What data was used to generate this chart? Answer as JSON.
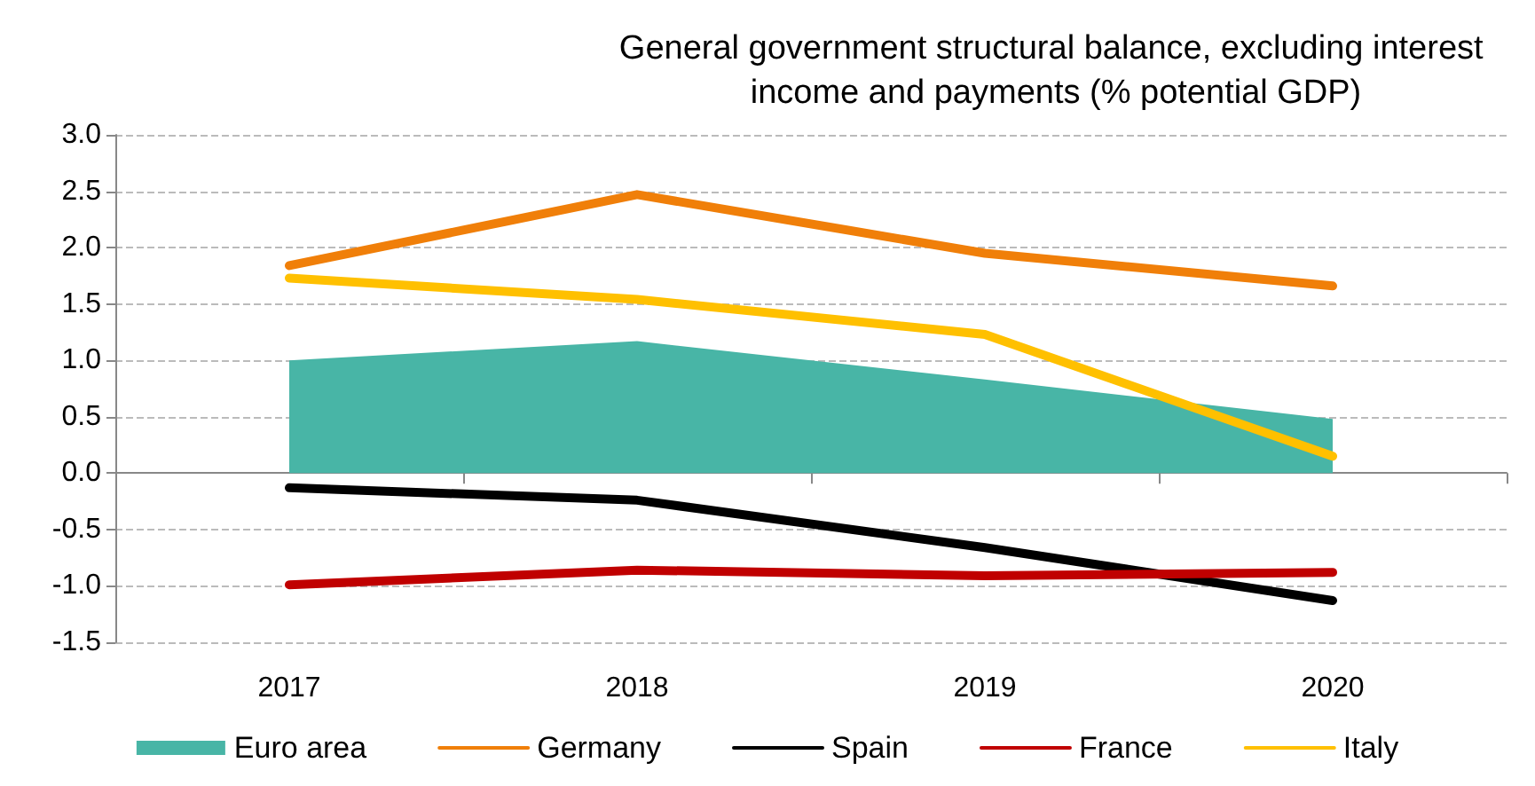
{
  "chart_data": {
    "type": "line",
    "title": "General government structural balance, excluding interest income and payments (% potential GDP)",
    "categories": [
      "2017",
      "2018",
      "2019",
      "2020"
    ],
    "series": [
      {
        "name": "Euro area",
        "type": "area",
        "color": "#48b5a6",
        "values": [
          1.0,
          1.17,
          0.83,
          0.48
        ]
      },
      {
        "name": "Germany",
        "color": "#f07f09",
        "values": [
          1.84,
          2.47,
          1.95,
          1.66
        ]
      },
      {
        "name": "Spain",
        "color": "#000000",
        "values": [
          -0.13,
          -0.24,
          -0.66,
          -1.13
        ]
      },
      {
        "name": "France",
        "color": "#c00000",
        "values": [
          -0.99,
          -0.86,
          -0.91,
          -0.88
        ]
      },
      {
        "name": "Italy",
        "color": "#ffc000",
        "values": [
          1.73,
          1.54,
          1.23,
          0.15
        ]
      }
    ],
    "ylim": [
      -1.5,
      3.0
    ],
    "yticks": [
      -1.5,
      {
        "value": -1,
        "label": "-1.0"
      },
      -0.5,
      {
        "value": 0,
        "label": "0.0"
      },
      0.5,
      {
        "value": 1,
        "label": "1.0"
      },
      1.5,
      {
        "value": 2,
        "label": "2.0"
      },
      2.5,
      {
        "value": 3,
        "label": "3.0"
      }
    ],
    "grid": "y",
    "legend": "bottom",
    "marker": "none",
    "line_style": "solid"
  }
}
